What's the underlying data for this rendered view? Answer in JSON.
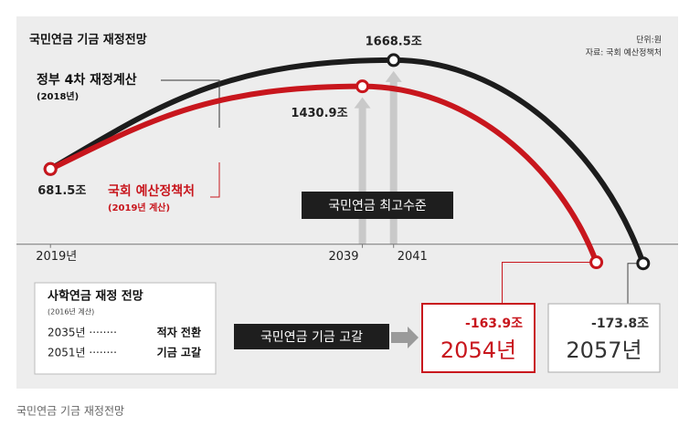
{
  "chart_data": {
    "type": "line",
    "title": "국민연금 기금 재정전망",
    "unit_note": "단위:원",
    "source": "자료: 국회 예산정책처",
    "caption": "국민연금 기금 재정전망",
    "xlim": [
      2016,
      2060
    ],
    "ylim": [
      -300,
      1800
    ],
    "xticks": [
      {
        "value": 2019,
        "label": "2019년"
      },
      2039,
      2041
    ],
    "series": [
      {
        "name": "정부 4차 재정계산",
        "note": "(2018년)",
        "color": "#1c1c1c",
        "x": [
          2019,
          2041,
          2057
        ],
        "values": [
          681.5,
          1668.5,
          -173.8
        ],
        "value_labels": [
          null,
          "1668.5조",
          "-173.8조"
        ]
      },
      {
        "name": "국회 예산정책처",
        "note": "(2019년 계산)",
        "color": "#c8161d",
        "x": [
          2019,
          2039,
          2054
        ],
        "values": [
          681.5,
          1430.9,
          -163.9
        ],
        "value_labels": [
          "681.5조",
          "1430.9조",
          "-163.9조"
        ]
      }
    ],
    "annotations": {
      "peak": "국민연금 최고수준",
      "depletion": "국민연금 기금 고갈",
      "depletion_years": [
        "2057년",
        "2054년"
      ]
    },
    "side_box": {
      "title": "사학연금 재정 전망",
      "note": "(2016년 계산)",
      "rows": [
        [
          "2035년 ········",
          "적자 전환"
        ],
        [
          "2051년 ········",
          "기금 고갈"
        ]
      ]
    }
  }
}
